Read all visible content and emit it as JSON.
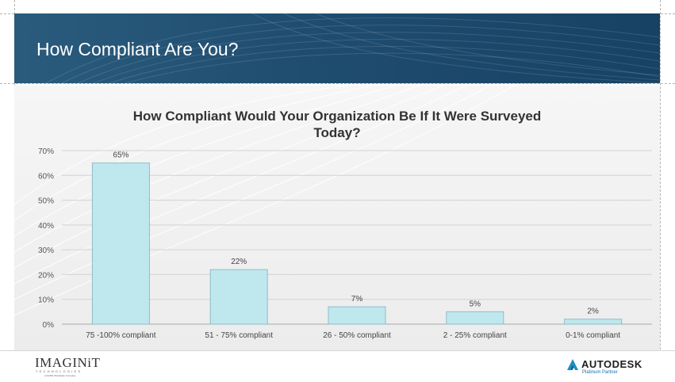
{
  "slide": {
    "title": "How Compliant Are You?"
  },
  "colors": {
    "banner": "#1f4d70",
    "bar_fill": "#bfe8ee",
    "bar_stroke": "#8fbcc6"
  },
  "chart_data": {
    "type": "bar",
    "title": "How Compliant Would Your Organization Be If It Were Surveyed Today?",
    "title_lines": [
      "How Compliant Would Your Organization Be If It Were Surveyed",
      "Today?"
    ],
    "categories": [
      "75 -100% compliant",
      "51 - 75% compliant",
      "26 - 50% compliant",
      "2 - 25% compliant",
      "0-1% compliant"
    ],
    "values": [
      65,
      22,
      7,
      5,
      2
    ],
    "data_labels": [
      "65%",
      "22%",
      "7%",
      "5%",
      "2%"
    ],
    "y_ticks": [
      0,
      10,
      20,
      30,
      40,
      50,
      60,
      70
    ],
    "y_tick_labels": [
      "0%",
      "10%",
      "20%",
      "30%",
      "40%",
      "50%",
      "60%",
      "70%"
    ],
    "ylim": [
      0,
      70
    ],
    "xlabel": "",
    "ylabel": "",
    "grid": true,
    "legend": "none"
  },
  "footer": {
    "left_logo": {
      "text": "IMAGINiT",
      "sub": "TECHNOLOGIES",
      "sub2": "A RAND Worldwide Company"
    },
    "right_logo": {
      "icon": "autodesk-a-icon",
      "text": "AUTODESK",
      "sub": "Platinum Partner"
    }
  }
}
